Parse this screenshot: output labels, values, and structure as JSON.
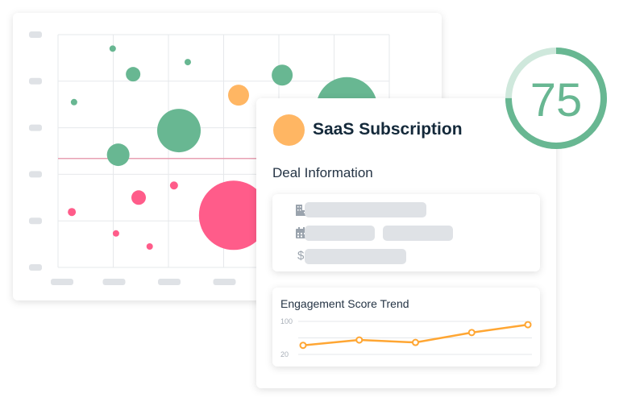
{
  "deal": {
    "title": "SaaS Subscription",
    "section": "Deal Information",
    "status_color": "#ffb663"
  },
  "score": {
    "value": "75",
    "percent": 75,
    "color": "#68b792"
  },
  "icons": [
    "building-icon",
    "calendar-icon",
    "dollar-icon"
  ],
  "dollar_glyph": "$",
  "trend": {
    "title": "Engagement Score Trend",
    "ytick_top": "100",
    "ytick_bottom": "20"
  },
  "chart_data": [
    {
      "type": "scatter",
      "subtype": "bubble",
      "xlim": [
        0,
        6
      ],
      "ylim": [
        0,
        5
      ],
      "grid": true,
      "threshold_y": 2.34,
      "colors": {
        "green": "#68b792",
        "orange": "#ffb663",
        "pink": "#ff5c8a",
        "threshold": "#e8a0b3"
      },
      "points": [
        {
          "x": 0.99,
          "y": 4.7,
          "size": 4,
          "color": "green"
        },
        {
          "x": 1.36,
          "y": 4.15,
          "size": 9,
          "color": "green"
        },
        {
          "x": 2.35,
          "y": 4.41,
          "size": 4,
          "color": "green"
        },
        {
          "x": 0.29,
          "y": 3.55,
          "size": 4,
          "color": "green"
        },
        {
          "x": 2.19,
          "y": 2.94,
          "size": 27,
          "color": "green"
        },
        {
          "x": 1.09,
          "y": 2.42,
          "size": 14,
          "color": "green"
        },
        {
          "x": 4.06,
          "y": 4.13,
          "size": 13,
          "color": "green"
        },
        {
          "x": 5.23,
          "y": 3.43,
          "size": 38,
          "color": "green"
        },
        {
          "x": 3.27,
          "y": 3.7,
          "size": 13,
          "color": "orange"
        },
        {
          "x": 0.25,
          "y": 1.19,
          "size": 5,
          "color": "pink"
        },
        {
          "x": 1.46,
          "y": 1.5,
          "size": 9,
          "color": "pink"
        },
        {
          "x": 2.1,
          "y": 1.76,
          "size": 5,
          "color": "pink"
        },
        {
          "x": 1.05,
          "y": 0.73,
          "size": 4,
          "color": "pink"
        },
        {
          "x": 1.66,
          "y": 0.45,
          "size": 4,
          "color": "pink"
        },
        {
          "x": 3.18,
          "y": 1.12,
          "size": 43,
          "color": "pink"
        }
      ]
    },
    {
      "type": "line",
      "title": "Engagement Score Trend",
      "ylim": [
        20,
        100
      ],
      "yticks": [
        "100",
        "20"
      ],
      "values": [
        42,
        55,
        49,
        73,
        92
      ],
      "color": "#ffa633"
    }
  ]
}
